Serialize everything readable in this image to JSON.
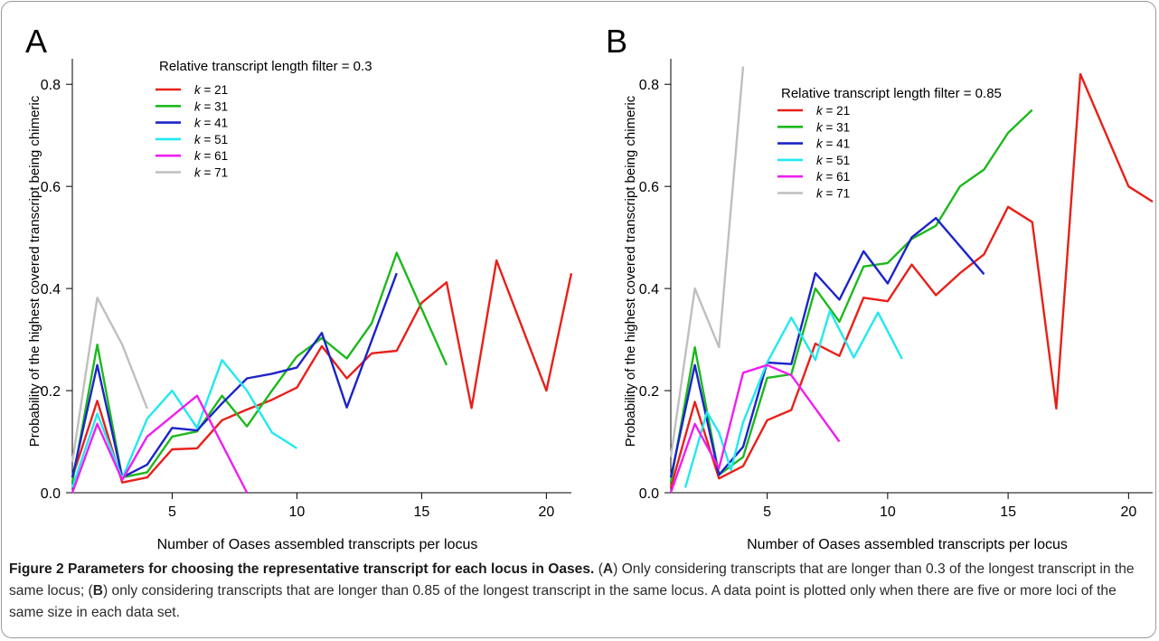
{
  "caption": {
    "title": "Figure 2 Parameters for choosing the representative transcript for each locus in Oases.",
    "part1_open": " (",
    "label_a": "A",
    "part2": ") Only considering transcripts that are longer than 0.3 of the longest transcript in the same locus; (",
    "label_b": "B",
    "part3": ") only considering transcripts that are longer than 0.85 of the longest transcript in the same locus. A data point is plotted only when there are five or more loci of the same size in each data set."
  },
  "chart_data": [
    {
      "type": "line",
      "panel_label": "A",
      "xlabel": "Number of Oases assembled transcripts per locus",
      "ylabel": "Probability of the highest covered transcript being chimeric",
      "xlim": [
        1,
        21
      ],
      "ylim": [
        0,
        0.85
      ],
      "xticks": [
        5,
        10,
        15,
        20
      ],
      "yticks": [
        0.0,
        0.2,
        0.4,
        0.6,
        0.8
      ],
      "ytick_labels": [
        "0.0",
        "0.2",
        "0.4",
        "0.6",
        "0.8"
      ],
      "legend_title": "Relative transcript length filter = 0.3",
      "legend_position": "top-left",
      "series": [
        {
          "name": "k = 21",
          "k": "21",
          "color": "#e8201a",
          "points": [
            [
              1,
              0.03
            ],
            [
              2,
              0.18
            ],
            [
              3,
              0.02
            ],
            [
              4,
              0.03
            ],
            [
              5,
              0.085
            ],
            [
              6,
              0.087
            ],
            [
              7,
              0.142
            ],
            [
              8,
              0.163
            ],
            [
              9,
              0.182
            ],
            [
              10,
              0.206
            ],
            [
              11,
              0.287
            ],
            [
              12,
              0.224
            ],
            [
              13,
              0.273
            ],
            [
              14,
              0.278
            ],
            [
              15,
              0.372
            ],
            [
              16,
              0.412
            ],
            [
              17,
              0.166
            ],
            [
              18,
              0.455
            ],
            [
              20,
              0.2
            ],
            [
              21,
              0.43
            ]
          ]
        },
        {
          "name": "k = 31",
          "k": "31",
          "color": "#1db81d",
          "points": [
            [
              1,
              0.02
            ],
            [
              2,
              0.29
            ],
            [
              3,
              0.03
            ],
            [
              4,
              0.04
            ],
            [
              5,
              0.11
            ],
            [
              6,
              0.12
            ],
            [
              7,
              0.19
            ],
            [
              8,
              0.13
            ],
            [
              9,
              0.2
            ],
            [
              10,
              0.267
            ],
            [
              11,
              0.303
            ],
            [
              12,
              0.263
            ],
            [
              13,
              0.332
            ],
            [
              14,
              0.47
            ],
            [
              16,
              0.25
            ]
          ]
        },
        {
          "name": "k = 41",
          "k": "41",
          "color": "#1c24c8",
          "points": [
            [
              1,
              0.03
            ],
            [
              2,
              0.25
            ],
            [
              3,
              0.03
            ],
            [
              4,
              0.055
            ],
            [
              5,
              0.127
            ],
            [
              6,
              0.122
            ],
            [
              7,
              0.175
            ],
            [
              8,
              0.224
            ],
            [
              9,
              0.233
            ],
            [
              10,
              0.245
            ],
            [
              11,
              0.313
            ],
            [
              12,
              0.167
            ],
            [
              14,
              0.43
            ]
          ]
        },
        {
          "name": "k = 51",
          "k": "51",
          "color": "#22e8f0",
          "points": [
            [
              1,
              0.01
            ],
            [
              2,
              0.155
            ],
            [
              3,
              0.028
            ],
            [
              4,
              0.145
            ],
            [
              5,
              0.2
            ],
            [
              6,
              0.127
            ],
            [
              7,
              0.26
            ],
            [
              8,
              0.2
            ],
            [
              9,
              0.118
            ],
            [
              10,
              0.087
            ]
          ]
        },
        {
          "name": "k = 61",
          "k": "61",
          "color": "#ee1fee",
          "points": [
            [
              1,
              0.0
            ],
            [
              2,
              0.135
            ],
            [
              3,
              0.025
            ],
            [
              4,
              0.11
            ],
            [
              6,
              0.19
            ],
            [
              8,
              0.0
            ]
          ]
        },
        {
          "name": "k = 71",
          "k": "71",
          "color": "#bfbfbf",
          "points": [
            [
              1,
              0.06
            ],
            [
              2,
              0.382
            ],
            [
              3,
              0.29
            ],
            [
              4,
              0.165
            ]
          ]
        }
      ]
    },
    {
      "type": "line",
      "panel_label": "B",
      "xlabel": "Number of Oases assembled transcripts per locus",
      "ylabel": "Probability of the highest covered transcript being chimeric",
      "xlim": [
        1,
        21
      ],
      "ylim": [
        0,
        0.85
      ],
      "xticks": [
        5,
        10,
        15,
        20
      ],
      "yticks": [
        0.0,
        0.2,
        0.4,
        0.6,
        0.8
      ],
      "ytick_labels": [
        "0.0",
        "0.2",
        "0.4",
        "0.6",
        "0.8"
      ],
      "legend_title": "Relative transcript length filter = 0.85",
      "legend_position": "top-left",
      "series": [
        {
          "name": "k = 21",
          "k": "21",
          "color": "#e8201a",
          "points": [
            [
              1,
              0.01
            ],
            [
              2,
              0.178
            ],
            [
              3,
              0.028
            ],
            [
              4,
              0.052
            ],
            [
              5,
              0.142
            ],
            [
              6,
              0.162
            ],
            [
              7,
              0.292
            ],
            [
              8,
              0.268
            ],
            [
              9,
              0.382
            ],
            [
              10,
              0.375
            ],
            [
              11,
              0.447
            ],
            [
              12,
              0.387
            ],
            [
              13,
              0.43
            ],
            [
              14,
              0.467
            ],
            [
              15,
              0.56
            ],
            [
              16,
              0.53
            ],
            [
              17,
              0.165
            ],
            [
              18,
              0.82
            ],
            [
              20,
              0.6
            ],
            [
              21,
              0.57
            ]
          ]
        },
        {
          "name": "k = 31",
          "k": "31",
          "color": "#1db81d",
          "points": [
            [
              1,
              0.02
            ],
            [
              2,
              0.285
            ],
            [
              3,
              0.035
            ],
            [
              4,
              0.07
            ],
            [
              5,
              0.225
            ],
            [
              6,
              0.232
            ],
            [
              7,
              0.4
            ],
            [
              8,
              0.335
            ],
            [
              9,
              0.443
            ],
            [
              10,
              0.45
            ],
            [
              11,
              0.497
            ],
            [
              12,
              0.523
            ],
            [
              13,
              0.6
            ],
            [
              14,
              0.633
            ],
            [
              15,
              0.705
            ],
            [
              16,
              0.75
            ]
          ]
        },
        {
          "name": "k = 41",
          "k": "41",
          "color": "#1c24c8",
          "points": [
            [
              1,
              0.03
            ],
            [
              2,
              0.25
            ],
            [
              3,
              0.035
            ],
            [
              4,
              0.09
            ],
            [
              5,
              0.255
            ],
            [
              6,
              0.252
            ],
            [
              7,
              0.43
            ],
            [
              8,
              0.378
            ],
            [
              9,
              0.473
            ],
            [
              10,
              0.41
            ],
            [
              11,
              0.5
            ],
            [
              12,
              0.538
            ],
            [
              14,
              0.428
            ]
          ]
        },
        {
          "name": "k = 51",
          "k": "51",
          "color": "#22e8f0",
          "points": [
            [
              1.6,
              0.01
            ],
            [
              2.5,
              0.158
            ],
            [
              3,
              0.118
            ],
            [
              3.5,
              0.045
            ],
            [
              4,
              0.138
            ],
            [
              5,
              0.255
            ],
            [
              6,
              0.343
            ],
            [
              7,
              0.26
            ],
            [
              7.6,
              0.356
            ],
            [
              8.6,
              0.265
            ],
            [
              9.6,
              0.353
            ],
            [
              10.6,
              0.262
            ]
          ]
        },
        {
          "name": "k = 61",
          "k": "61",
          "color": "#ee1fee",
          "points": [
            [
              1,
              0.0
            ],
            [
              2,
              0.135
            ],
            [
              3,
              0.048
            ],
            [
              4,
              0.235
            ],
            [
              5,
              0.25
            ],
            [
              6,
              0.23
            ],
            [
              8,
              0.1
            ]
          ]
        },
        {
          "name": "k = 71",
          "k": "71",
          "color": "#bfbfbf",
          "points": [
            [
              1,
              0.07
            ],
            [
              2,
              0.4
            ],
            [
              3,
              0.285
            ],
            [
              4,
              0.835
            ]
          ]
        }
      ]
    }
  ]
}
